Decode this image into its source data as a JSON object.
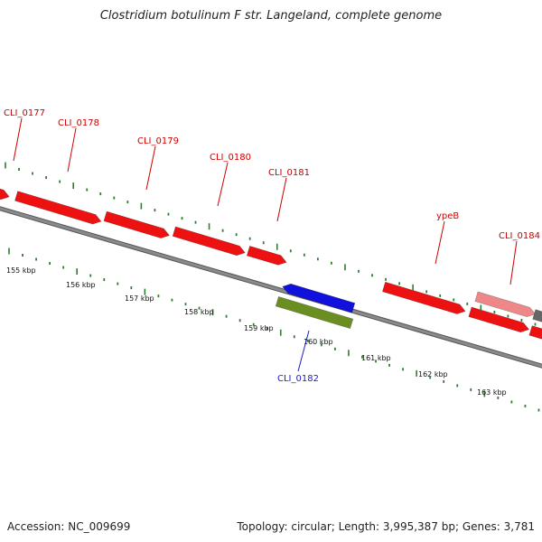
{
  "title": "Clostridium botulinum F str. Langeland, complete genome",
  "footer": {
    "accession": "Accession: NC_009699",
    "summary": "Topology: circular; Length: 3,995,387 bp; Genes: 3,781"
  },
  "colors": {
    "gene": "#ee1111",
    "gene_highlight": "#ee8888",
    "gene_minus": "#1111dd",
    "gene_rna": "#6b8e23",
    "gene_gray": "#666666",
    "backbone": "#8a8a8a",
    "tick": "#2f7d2f",
    "plus_label": "#cc0000",
    "minus_label": "#1a1acc"
  },
  "scale_labels": [
    "155 kbp",
    "156 kbp",
    "157 kbp",
    "158 kbp",
    "159 kbp",
    "160 kbp",
    "161 kbp",
    "162 kbp",
    "163 kbp"
  ],
  "genes": [
    {
      "label": "",
      "strand": "plus",
      "style": "gene"
    },
    {
      "label": "CLI_0177",
      "strand": "plus",
      "style": "gene"
    },
    {
      "label": "CLI_0178",
      "strand": "plus",
      "style": "gene"
    },
    {
      "label": "CLI_0179",
      "strand": "plus",
      "style": "gene"
    },
    {
      "label": "CLI_0180",
      "strand": "plus",
      "style": "gene"
    },
    {
      "label": "CLI_0181",
      "strand": "minus",
      "style": "gene_minus"
    },
    {
      "label": "CLI_0182",
      "strand": "minus",
      "style": "gene_rna"
    },
    {
      "label": "ypeB",
      "strand": "plus",
      "style": "gene"
    },
    {
      "label": "CLI_0184",
      "strand": "plus",
      "style": "gene_highlight"
    },
    {
      "label": "",
      "strand": "plus",
      "style": "gene"
    },
    {
      "label": "",
      "strand": "plus",
      "style": "gene_gray"
    },
    {
      "label": "",
      "strand": "plus",
      "style": "gene"
    }
  ]
}
